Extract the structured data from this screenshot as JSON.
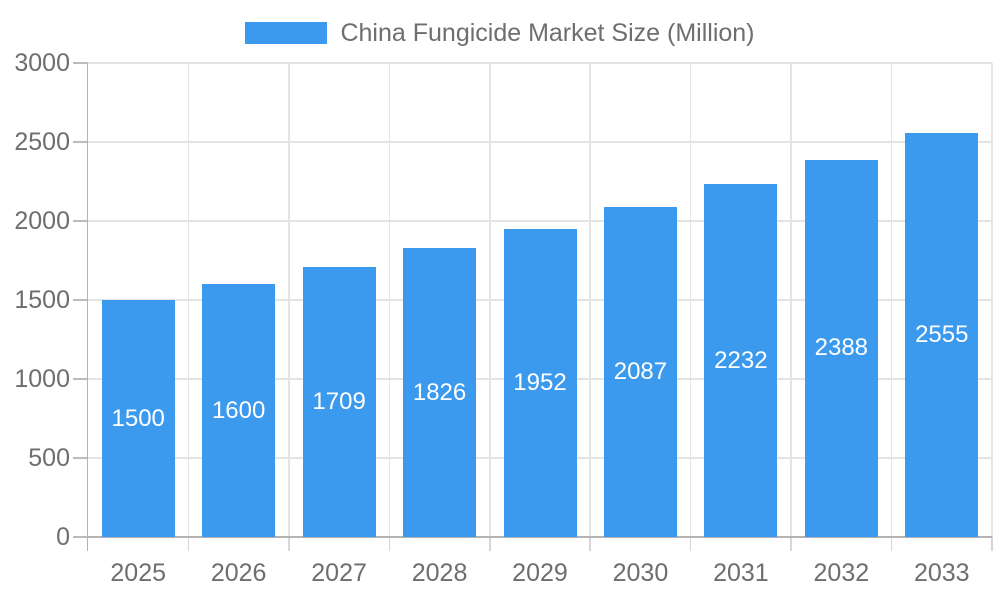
{
  "legend": {
    "label": "China Fungicide Market Size (Million)"
  },
  "chart_data": {
    "type": "bar",
    "title": "China Fungicide Market Size (Million)",
    "categories": [
      "2025",
      "2026",
      "2027",
      "2028",
      "2029",
      "2030",
      "2031",
      "2032",
      "2033"
    ],
    "series": [
      {
        "name": "China Fungicide Market Size (Million)",
        "values": [
          1500,
          1600,
          1709,
          1826,
          1952,
          2087,
          2232,
          2388,
          2555
        ]
      }
    ],
    "value_labels": [
      1500,
      1600,
      1709,
      1826,
      1952,
      2087,
      2232,
      2388,
      2555
    ],
    "xlabel": "",
    "ylabel": "",
    "ylim": [
      0,
      3000
    ],
    "yticks": [
      0,
      500,
      1000,
      1500,
      2000,
      2500,
      3000
    ],
    "grid": true,
    "legend_position": "top",
    "colors": {
      "bar": "#3B99EE",
      "axis_text": "#6e6e6e",
      "bar_label_text": "#ffffff",
      "grid_line": "#e4e4e4",
      "axis_line": "#b3b3b3"
    }
  }
}
